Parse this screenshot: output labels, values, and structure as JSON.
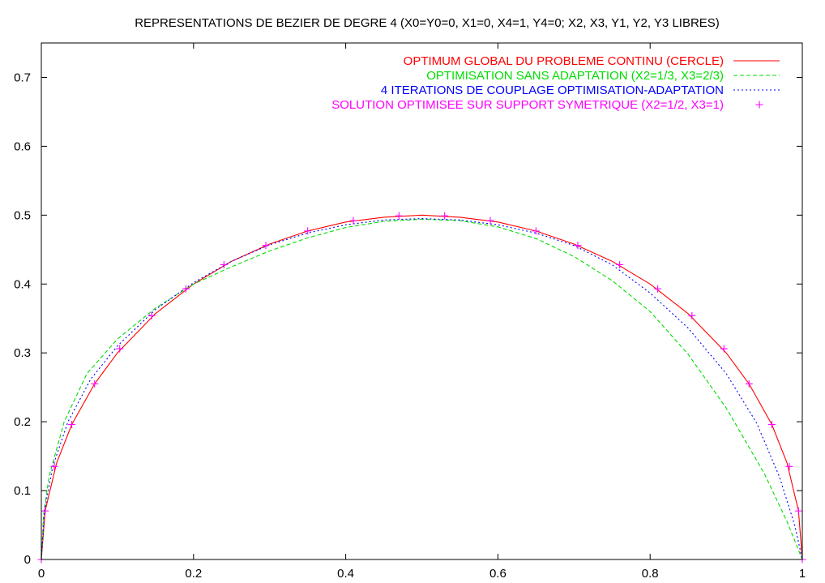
{
  "chart_data": {
    "type": "line",
    "title": "REPRESENTATIONS DE BEZIER DE DEGRE 4 (X0=Y0=0, X1=0, X4=1, Y4=0; X2, X3, Y1, Y2, Y3 LIBRES)",
    "xlabel": "",
    "ylabel": "",
    "xlim": [
      0,
      1
    ],
    "ylim": [
      0,
      0.75
    ],
    "x_ticks": [
      "0",
      "0.2",
      "0.4",
      "0.6",
      "0.8",
      "1"
    ],
    "y_ticks": [
      "0",
      "0.1",
      "0.2",
      "0.3",
      "0.4",
      "0.5",
      "0.6",
      "0.7"
    ],
    "grid": false,
    "legend_position": "top-right",
    "series": [
      {
        "name": "OPTIMUM GLOBAL DU PROBLEME CONTINU (CERCLE)",
        "style": "solid",
        "color": "#ff0000",
        "x": [
          0,
          0.005,
          0.02,
          0.04,
          0.07,
          0.1,
          0.15,
          0.2,
          0.25,
          0.3,
          0.35,
          0.4,
          0.45,
          0.5,
          0.55,
          0.6,
          0.65,
          0.7,
          0.75,
          0.8,
          0.85,
          0.9,
          0.93,
          0.96,
          0.98,
          0.995,
          1
        ],
        "y": [
          0,
          0.0705,
          0.14,
          0.196,
          0.255,
          0.3,
          0.357,
          0.4,
          0.433,
          0.458,
          0.477,
          0.49,
          0.497,
          0.5,
          0.497,
          0.49,
          0.477,
          0.458,
          0.433,
          0.4,
          0.357,
          0.3,
          0.255,
          0.196,
          0.14,
          0.0705,
          0
        ]
      },
      {
        "name": "OPTIMISATION SANS ADAPTATION (X2=1/3, X3=2/3)",
        "style": "dashed",
        "color": "#00dd00",
        "x": [
          0,
          0.003,
          0.01,
          0.03,
          0.06,
          0.1,
          0.15,
          0.2,
          0.25,
          0.3,
          0.35,
          0.4,
          0.45,
          0.5,
          0.55,
          0.6,
          0.65,
          0.7,
          0.75,
          0.8,
          0.85,
          0.9,
          0.95,
          0.98,
          1
        ],
        "y": [
          0,
          0.065,
          0.12,
          0.2,
          0.27,
          0.32,
          0.365,
          0.4,
          0.425,
          0.448,
          0.467,
          0.482,
          0.491,
          0.494,
          0.492,
          0.483,
          0.466,
          0.44,
          0.405,
          0.36,
          0.298,
          0.22,
          0.125,
          0.055,
          0
        ]
      },
      {
        "name": "4 ITERATIONS DE COUPLAGE OPTIMISATION-ADAPTATION",
        "style": "dotted",
        "color": "#0000ff",
        "x": [
          0,
          0.004,
          0.015,
          0.035,
          0.065,
          0.1,
          0.15,
          0.2,
          0.25,
          0.3,
          0.35,
          0.4,
          0.45,
          0.5,
          0.55,
          0.6,
          0.65,
          0.7,
          0.75,
          0.8,
          0.85,
          0.9,
          0.94,
          0.97,
          0.99,
          1
        ],
        "y": [
          0,
          0.07,
          0.135,
          0.2,
          0.262,
          0.31,
          0.363,
          0.402,
          0.433,
          0.457,
          0.474,
          0.486,
          0.493,
          0.495,
          0.493,
          0.486,
          0.474,
          0.456,
          0.428,
          0.387,
          0.336,
          0.27,
          0.198,
          0.12,
          0.05,
          0
        ]
      },
      {
        "name": "SOLUTION OPTIMISEE SUR SUPPORT SYMETRIQUE (X2=1/2, X3=1)",
        "style": "points",
        "color": "#ff00ff",
        "x": [
          0,
          0.005,
          0.017,
          0.04,
          0.07,
          0.103,
          0.145,
          0.19,
          0.24,
          0.295,
          0.35,
          0.41,
          0.47,
          0.53,
          0.59,
          0.65,
          0.705,
          0.76,
          0.81,
          0.855,
          0.897,
          0.93,
          0.96,
          0.983,
          0.995,
          1
        ],
        "y": [
          0,
          0.0705,
          0.135,
          0.196,
          0.255,
          0.306,
          0.354,
          0.393,
          0.428,
          0.456,
          0.477,
          0.492,
          0.499,
          0.499,
          0.492,
          0.477,
          0.456,
          0.428,
          0.393,
          0.354,
          0.306,
          0.255,
          0.196,
          0.135,
          0.0705,
          0
        ]
      }
    ]
  }
}
